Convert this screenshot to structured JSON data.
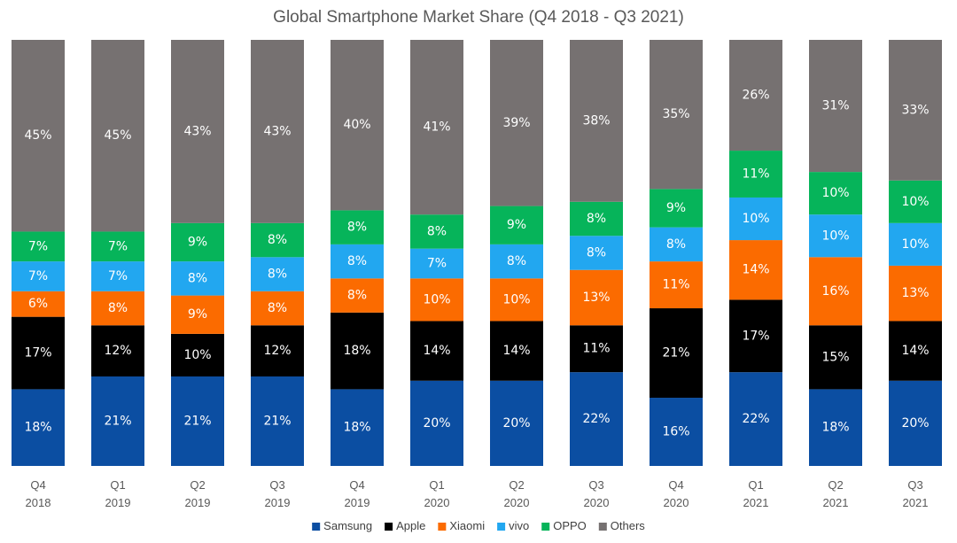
{
  "chart_data": {
    "type": "bar",
    "stacked": true,
    "title": "Global Smartphone Market Share (Q4 2018  - Q3 2021)",
    "categories": [
      [
        "Q4",
        "2018"
      ],
      [
        "Q1",
        "2019"
      ],
      [
        "Q2",
        "2019"
      ],
      [
        "Q3",
        "2019"
      ],
      [
        "Q4",
        "2019"
      ],
      [
        "Q1",
        "2020"
      ],
      [
        "Q2",
        "2020"
      ],
      [
        "Q3",
        "2020"
      ],
      [
        "Q4",
        "2020"
      ],
      [
        "Q1",
        "2021"
      ],
      [
        "Q2",
        "2021"
      ],
      [
        "Q3",
        "2021"
      ]
    ],
    "ylim": [
      0,
      100
    ],
    "value_suffix": "%",
    "legend_position": "bottom",
    "series": [
      {
        "name": "Samsung",
        "color": "#0b4ea2",
        "label_color": "#ffffff",
        "values": [
          18,
          21,
          21,
          21,
          18,
          20,
          20,
          22,
          16,
          22,
          18,
          20
        ]
      },
      {
        "name": "Apple",
        "color": "#000000",
        "label_color": "#ffffff",
        "values": [
          17,
          12,
          10,
          12,
          18,
          14,
          14,
          11,
          21,
          17,
          15,
          14
        ]
      },
      {
        "name": "Xiaomi",
        "color": "#fb6b00",
        "label_color": "#ffffff",
        "values": [
          6,
          8,
          9,
          8,
          8,
          10,
          10,
          13,
          11,
          14,
          16,
          13
        ]
      },
      {
        "name": "vivo",
        "color": "#22a7f0",
        "label_color": "#ffffff",
        "values": [
          7,
          7,
          8,
          8,
          8,
          7,
          8,
          8,
          8,
          10,
          10,
          10
        ]
      },
      {
        "name": "OPPO",
        "color": "#06b45a",
        "label_color": "#ffffff",
        "values": [
          7,
          7,
          9,
          8,
          8,
          8,
          9,
          8,
          9,
          11,
          10,
          10
        ]
      },
      {
        "name": "Others",
        "color": "#767171",
        "label_color": "#ffffff",
        "values": [
          45,
          45,
          43,
          43,
          40,
          41,
          39,
          38,
          35,
          26,
          31,
          33
        ]
      }
    ]
  }
}
